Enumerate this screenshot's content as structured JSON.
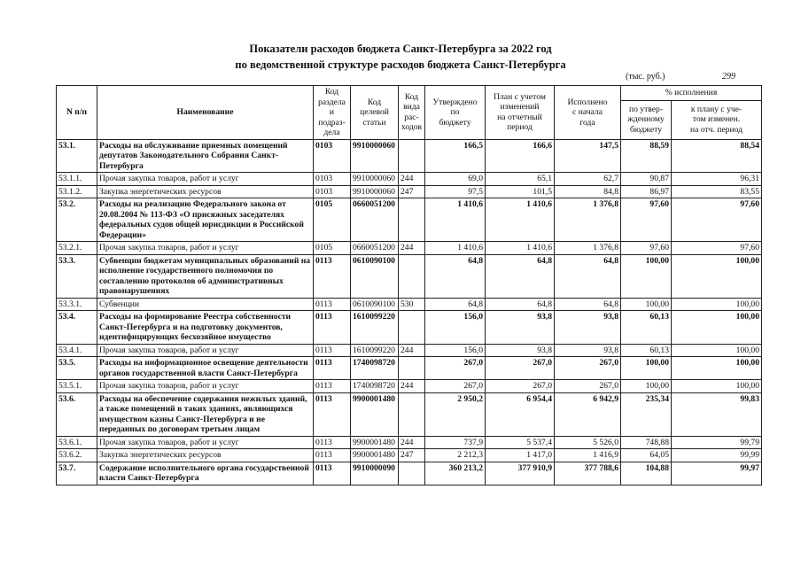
{
  "header": {
    "title": [
      "Показатели расходов бюджета Санкт-Петербурга за 2022 год",
      "по ведомственной структуре расходов бюджета Санкт-Петербурга"
    ],
    "unit": "(тыс. руб.)",
    "page": "299"
  },
  "table": {
    "columns": [
      "N п/п",
      "Наименование",
      "Код\nраздела и\nподраз-\nдела",
      "Код\nцелевой\nстатьи",
      "Код\nвида\nрас-\nходов",
      "Утверждено\nпо\nбюджету",
      "План с учетом\nизменений\nна отчетный\nпериод",
      "Исполнено\nс начала\nгода"
    ],
    "group": "% исполнения",
    "subcolumns": [
      "по утвер-\nжденному\nбюджету",
      "к плану с уче-\nтом изменен.\nна отч. период"
    ],
    "rows": [
      [
        "53.1.",
        "Расходы на обслуживание приемных помещений депутатов Законодательного Собрания Санкт-Петербурга",
        "0103",
        "9910000060",
        null,
        "166,5",
        "166,6",
        "147,5",
        "88,59",
        "88,54"
      ],
      [
        "53.1.1.",
        "Прочая закупка товаров, работ и услуг",
        "0103",
        "9910000060",
        "244",
        "69,0",
        "65,1",
        "62,7",
        "90,87",
        "96,31"
      ],
      [
        "53.1.2.",
        "Закупка энергетических ресурсов",
        "0103",
        "9910000060",
        "247",
        "97,5",
        "101,5",
        "84,8",
        "86,97",
        "83,55"
      ],
      [
        "53.2.",
        "Расходы на реализацию Федерального закона от 20.08.2004 № 113-ФЗ «О присяжных заседателях федеральных судов общей юрисдикции в Российской Федерации»",
        "0105",
        "0660051200",
        null,
        "1 410,6",
        "1 410,6",
        "1 376,8",
        "97,60",
        "97,60"
      ],
      [
        "53.2.1.",
        "Прочая закупка товаров, работ и услуг",
        "0105",
        "0660051200",
        "244",
        "1 410,6",
        "1 410,6",
        "1 376,8",
        "97,60",
        "97,60"
      ],
      [
        "53.3.",
        "Субвенции бюджетам муниципальных образований на исполнение государственного полномочия по составлению протоколов об административных правонарушениях",
        "0113",
        "0610090100",
        null,
        "64,8",
        "64,8",
        "64,8",
        "100,00",
        "100,00"
      ],
      [
        "53.3.1.",
        "Субвенции",
        "0113",
        "0610090100",
        "530",
        "64,8",
        "64,8",
        "64,8",
        "100,00",
        "100,00"
      ],
      [
        "53.4.",
        "Расходы на формирование Реестра собственности Санкт-Петербурга и на подготовку документов, идентифицирующих бесхозяйное имущество",
        "0113",
        "1610099220",
        null,
        "156,0",
        "93,8",
        "93,8",
        "60,13",
        "100,00"
      ],
      [
        "53.4.1.",
        "Прочая закупка товаров, работ и услуг",
        "0113",
        "1610099220",
        "244",
        "156,0",
        "93,8",
        "93,8",
        "60,13",
        "100,00"
      ],
      [
        "53.5.",
        "Расходы на информационное освещение деятельности органов государственной власти Санкт-Петербурга",
        "0113",
        "1740098720",
        null,
        "267,0",
        "267,0",
        "267,0",
        "100,00",
        "100,00"
      ],
      [
        "53.5.1.",
        "Прочая закупка товаров, работ и услуг",
        "0113",
        "1740098720",
        "244",
        "267,0",
        "267,0",
        "267,0",
        "100,00",
        "100,00"
      ],
      [
        "53.6.",
        "Расходы на обеспечение содержания нежилых зданий, а также помещений в таких зданиях, являющихся имуществом казны Санкт-Петербурга и не переданных по договорам третьим лицам",
        "0113",
        "9900001480",
        null,
        "2 950,2",
        "6 954,4",
        "6 942,9",
        "235,34",
        "99,83"
      ],
      [
        "53.6.1.",
        "Прочая закупка товаров, работ и услуг",
        "0113",
        "9900001480",
        "244",
        "737,9",
        "5 537,4",
        "5 526,0",
        "748,88",
        "99,79"
      ],
      [
        "53.6.2.",
        "Закупка энергетических ресурсов",
        "0113",
        "9900001480",
        "247",
        "2 212,3",
        "1 417,0",
        "1 416,9",
        "64,05",
        "99,99"
      ],
      [
        "53.7.",
        "Содержание исполнительного органа государственной власти Санкт-Петербурга",
        "0113",
        "9910000090",
        null,
        "360 213,2",
        "377 910,9",
        "377 788,6",
        "104,88",
        "99,97"
      ]
    ]
  }
}
